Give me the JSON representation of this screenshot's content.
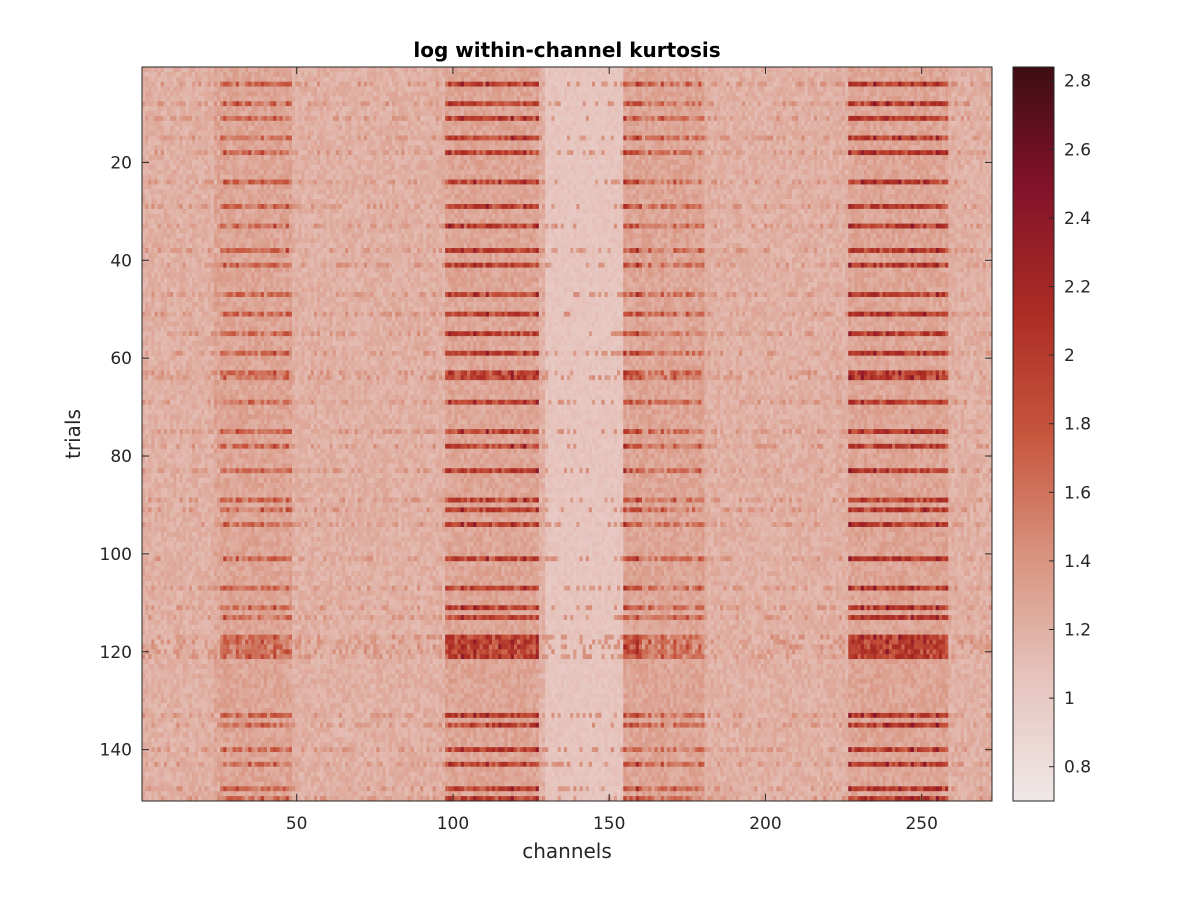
{
  "chart_data": {
    "type": "heatmap",
    "title": "log within-channel kurtosis",
    "xlabel": "channels",
    "ylabel": "trials",
    "x_range": [
      1,
      272
    ],
    "y_range": [
      1,
      150
    ],
    "y_direction": "reversed",
    "x_ticks": [
      50,
      100,
      150,
      200,
      250
    ],
    "y_ticks": [
      20,
      40,
      60,
      80,
      100,
      120,
      140
    ],
    "colorbar": {
      "min": 0.7,
      "max": 2.84,
      "ticks": [
        0.8,
        1,
        1.2,
        1.4,
        1.6,
        1.8,
        2,
        2.2,
        2.4,
        2.6,
        2.8
      ],
      "colormap": [
        "#f0e8e8",
        "#e6c4bd",
        "#d8937f",
        "#c7553d",
        "#ab2c24",
        "#84132a",
        "#3e0d14"
      ]
    },
    "baseline_value": 1.2,
    "hot_channel_bands": [
      {
        "channels": [
          24,
          25
        ],
        "level": 1.45
      },
      {
        "channels": [
          26,
          48
        ],
        "level": 1.75
      },
      {
        "channels": [
          98,
          127
        ],
        "level": 2.1
      },
      {
        "channels": [
          155,
          160
        ],
        "level": 1.95
      },
      {
        "channels": [
          160,
          180
        ],
        "level": 1.7
      },
      {
        "channels": [
          227,
          258
        ],
        "level": 2.15
      }
    ],
    "cool_channel_band": {
      "channels": [
        130,
        154
      ],
      "level": 1.05
    },
    "hot_trials": [
      4,
      8,
      11,
      15,
      18,
      24,
      29,
      33,
      38,
      41,
      47,
      51,
      55,
      59,
      63,
      64,
      69,
      75,
      78,
      83,
      89,
      91,
      94,
      101,
      107,
      111,
      113,
      117,
      118,
      119,
      120,
      121,
      133,
      135,
      140,
      143,
      148,
      150
    ]
  }
}
